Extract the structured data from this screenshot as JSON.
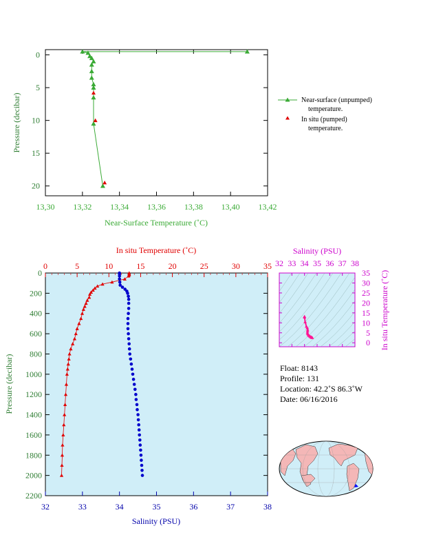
{
  "chart_data": [
    {
      "type": "line",
      "xlabel": "Near-Surface Temperature (˚C)",
      "ylabel": "Pressure (decibar)",
      "xlim": [
        13.3,
        13.42
      ],
      "ylim": [
        21.5,
        -0.8
      ],
      "xticks": [
        "13,30",
        "13,32",
        "13,34",
        "13,36",
        "13,38",
        "13,40",
        "13,42"
      ],
      "yticks": [
        "0",
        "5",
        "10",
        "15",
        "20"
      ],
      "series": [
        {
          "name": "Near-surface (unpumped) temperature.",
          "color": "#3aaa35",
          "points": [
            [
              13.409,
              -0.5
            ],
            [
              13.32,
              -0.5
            ],
            [
              13.323,
              -0.3
            ],
            [
              13.324,
              0.2
            ],
            [
              13.325,
              0.5
            ],
            [
              13.326,
              1.0
            ],
            [
              13.325,
              1.5
            ],
            [
              13.325,
              2.5
            ],
            [
              13.325,
              3.5
            ],
            [
              13.326,
              4.5
            ],
            [
              13.326,
              5.0
            ],
            [
              13.326,
              6.5
            ],
            [
              13.326,
              10.5
            ],
            [
              13.331,
              20.0
            ]
          ]
        },
        {
          "name": "In situ (pumped) temperature.",
          "color": "#e00000",
          "points": [
            [
              13.326,
              5.8
            ],
            [
              13.327,
              10.0
            ],
            [
              13.332,
              19.5
            ]
          ]
        }
      ]
    },
    {
      "type": "scatter",
      "title": "In situ Temperature (˚C)",
      "xlabel": "Salinity (PSU)",
      "ylabel": "Pressure (decibar)",
      "salinity_xlim": [
        32,
        38
      ],
      "temperature_xlim": [
        0,
        35
      ],
      "ylim": [
        2200,
        0
      ],
      "salinity_ticks": [
        "32",
        "33",
        "34",
        "35",
        "36",
        "37",
        "38"
      ],
      "temperature_ticks": [
        "0",
        "5",
        "10",
        "15",
        "20",
        "25",
        "30",
        "35"
      ],
      "pressure_ticks": [
        "0",
        "200",
        "400",
        "600",
        "800",
        "1000",
        "1200",
        "1400",
        "1600",
        "1800",
        "2000",
        "2200"
      ],
      "temperature": {
        "color": "#e00000",
        "points": [
          [
            13.2,
            0
          ],
          [
            13.2,
            10
          ],
          [
            13.2,
            20
          ],
          [
            13.1,
            30
          ],
          [
            12.5,
            60
          ],
          [
            10.5,
            90
          ],
          [
            9.0,
            110
          ],
          [
            8.2,
            130
          ],
          [
            7.8,
            150
          ],
          [
            7.5,
            170
          ],
          [
            7.2,
            190
          ],
          [
            7.0,
            210
          ],
          [
            6.9,
            240
          ],
          [
            6.6,
            270
          ],
          [
            6.4,
            300
          ],
          [
            6.2,
            330
          ],
          [
            6.0,
            360
          ],
          [
            5.8,
            400
          ],
          [
            5.6,
            450
          ],
          [
            5.3,
            500
          ],
          [
            5.0,
            550
          ],
          [
            4.8,
            600
          ],
          [
            4.6,
            650
          ],
          [
            4.3,
            700
          ],
          [
            4.0,
            750
          ],
          [
            3.8,
            800
          ],
          [
            3.7,
            850
          ],
          [
            3.6,
            900
          ],
          [
            3.5,
            950
          ],
          [
            3.4,
            1000
          ],
          [
            3.3,
            1100
          ],
          [
            3.2,
            1200
          ],
          [
            3.1,
            1300
          ],
          [
            3.0,
            1400
          ],
          [
            2.9,
            1500
          ],
          [
            2.8,
            1600
          ],
          [
            2.7,
            1700
          ],
          [
            2.65,
            1800
          ],
          [
            2.6,
            1900
          ],
          [
            2.55,
            2000
          ]
        ]
      },
      "salinity": {
        "color": "#0000cc",
        "points": [
          [
            34.0,
            0
          ],
          [
            34.0,
            10
          ],
          [
            34.0,
            30
          ],
          [
            34.0,
            60
          ],
          [
            34.01,
            90
          ],
          [
            34.02,
            120
          ],
          [
            34.08,
            140
          ],
          [
            34.15,
            160
          ],
          [
            34.2,
            180
          ],
          [
            34.22,
            200
          ],
          [
            34.24,
            230
          ],
          [
            34.25,
            260
          ],
          [
            34.25,
            300
          ],
          [
            34.25,
            350
          ],
          [
            34.24,
            400
          ],
          [
            34.23,
            450
          ],
          [
            34.23,
            500
          ],
          [
            34.23,
            550
          ],
          [
            34.24,
            600
          ],
          [
            34.25,
            650
          ],
          [
            34.26,
            700
          ],
          [
            34.27,
            750
          ],
          [
            34.28,
            800
          ],
          [
            34.3,
            850
          ],
          [
            34.32,
            900
          ],
          [
            34.34,
            950
          ],
          [
            34.36,
            1000
          ],
          [
            34.38,
            1050
          ],
          [
            34.4,
            1100
          ],
          [
            34.42,
            1150
          ],
          [
            34.44,
            1200
          ],
          [
            34.45,
            1250
          ],
          [
            34.47,
            1300
          ],
          [
            34.48,
            1350
          ],
          [
            34.5,
            1400
          ],
          [
            34.51,
            1450
          ],
          [
            34.52,
            1500
          ],
          [
            34.53,
            1550
          ],
          [
            34.54,
            1600
          ],
          [
            34.55,
            1650
          ],
          [
            34.56,
            1700
          ],
          [
            34.57,
            1750
          ],
          [
            34.58,
            1800
          ],
          [
            34.59,
            1850
          ],
          [
            34.6,
            1900
          ],
          [
            34.61,
            1950
          ],
          [
            34.62,
            2000
          ]
        ]
      }
    },
    {
      "type": "scatter",
      "title": "Salinity (PSU)",
      "ylabel": "In situ Temperature (˚C)",
      "xlim": [
        32,
        38
      ],
      "ylim": [
        -2,
        35
      ],
      "xticks": [
        "32",
        "33",
        "34",
        "35",
        "36",
        "37",
        "38"
      ],
      "yticks": [
        "0",
        "5",
        "10",
        "15",
        "20",
        "25",
        "30",
        "35"
      ],
      "points": [
        [
          34.0,
          13.2
        ],
        [
          34.0,
          12.8
        ],
        [
          34.05,
          10.5
        ],
        [
          34.15,
          8.2
        ],
        [
          34.22,
          7.5
        ],
        [
          34.25,
          6.5
        ],
        [
          34.24,
          5.8
        ],
        [
          34.23,
          5.0
        ],
        [
          34.26,
          4.5
        ],
        [
          34.3,
          4.0
        ],
        [
          34.36,
          3.6
        ],
        [
          34.42,
          3.3
        ],
        [
          34.48,
          3.0
        ],
        [
          34.52,
          2.9
        ],
        [
          34.56,
          2.7
        ],
        [
          34.6,
          2.6
        ],
        [
          34.62,
          2.55
        ]
      ]
    }
  ],
  "legend": {
    "near_surface": "Near-surface (unpumped) temperature.",
    "in_situ": "In situ (pumped) temperature."
  },
  "float_info": {
    "float": "Float:  8143",
    "profile": "Profile:  131",
    "location": "Location:  42.2˚S  86.3˚W",
    "date": "Date:  06/16/2016"
  },
  "map": {
    "location_marker_color": "#0000ff"
  },
  "colors": {
    "green": "#3aaa35",
    "red": "#e00000",
    "blue": "#0000cc",
    "magenta": "#cc00cc",
    "panel_bg": "#d0eef8"
  }
}
